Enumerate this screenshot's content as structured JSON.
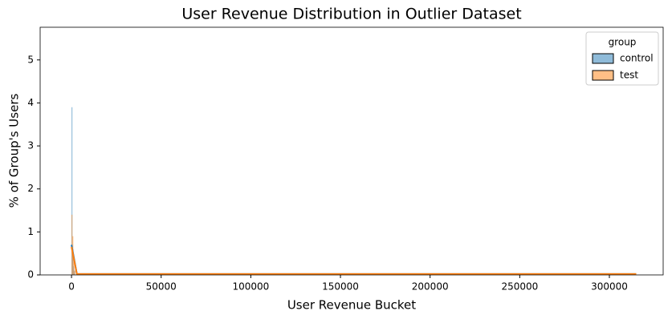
{
  "chart_data": {
    "type": "histogram",
    "title": "User Revenue Distribution in Outlier Dataset",
    "xlabel": "User Revenue Bucket",
    "ylabel": "% of Group's Users",
    "bins": [
      0,
      500,
      1000,
      1500,
      2000
    ],
    "kde_x": [
      0,
      3000,
      315000
    ],
    "series": [
      {
        "name": "control",
        "color": "#1f77b4",
        "values": [
          3.9,
          0.6,
          0.2,
          0.1
        ],
        "kde": [
          0.7,
          0.02,
          0.02
        ]
      },
      {
        "name": "test",
        "color": "#ff7f0e",
        "values": [
          1.4,
          0.9,
          0.3,
          0.1
        ],
        "kde": [
          0.65,
          0.02,
          0.02
        ]
      }
    ],
    "xlim": [
      -17500,
      330000
    ],
    "ylim": [
      0,
      5.76
    ],
    "xticks": [
      0,
      50000,
      100000,
      150000,
      200000,
      250000,
      300000
    ],
    "yticks": [
      0,
      1,
      2,
      3,
      4,
      5
    ],
    "legend_title": "group",
    "legend_loc": "upper right"
  }
}
